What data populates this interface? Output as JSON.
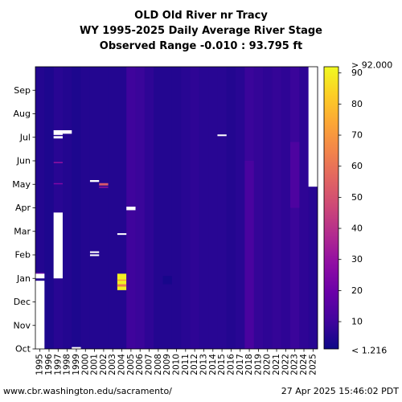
{
  "chart_data": {
    "type": "heatmap",
    "title": [
      "OLD Old River nr Tracy",
      "WY 1995-2025 Daily Average River Stage",
      "Observed Range -0.010 : 93.795 ft"
    ],
    "units": "ft",
    "x_tick_labels": [
      "1995",
      "1996",
      "1997",
      "1998",
      "1999",
      "2000",
      "2001",
      "2002",
      "2003",
      "2004",
      "2005",
      "2006",
      "2007",
      "2008",
      "2009",
      "2010",
      "2011",
      "2012",
      "2013",
      "2014",
      "2015",
      "2016",
      "2017",
      "2018",
      "2019",
      "2020",
      "2021",
      "2022",
      "2023",
      "2024",
      "2025"
    ],
    "y_tick_labels": [
      "Oct",
      "Nov",
      "Dec",
      "Jan",
      "Feb",
      "Mar",
      "Apr",
      "May",
      "Jun",
      "Jul",
      "Aug",
      "Sep"
    ],
    "colorbar": {
      "range": [
        1.216,
        92.0
      ],
      "ticks": [
        10,
        20,
        30,
        40,
        50,
        60,
        70,
        80,
        90
      ],
      "top_label": "> 92.000",
      "bottom_label": "< 1.216",
      "colormap": "plasma"
    },
    "background_value": 7,
    "column_values": [
      5,
      4,
      6,
      5,
      4,
      5,
      5,
      5,
      5,
      5,
      5,
      6,
      7,
      5,
      5,
      5,
      6,
      7,
      6,
      6,
      6,
      5,
      6,
      9,
      8,
      7,
      8,
      7,
      9,
      7,
      6
    ],
    "missing_blocks": [
      {
        "year": "1995",
        "start_month_index": 3.0,
        "end_month_index": 3.2
      },
      {
        "year": "1995",
        "start_month_index": 0.0,
        "end_month_index": 2.9
      },
      {
        "year": "1997",
        "start_month_index": 3.0,
        "end_month_index": 5.8
      },
      {
        "year": "1997",
        "start_month_index": 8.95,
        "end_month_index": 9.05
      },
      {
        "year": "1997",
        "start_month_index": 9.1,
        "end_month_index": 9.3
      },
      {
        "year": "1998",
        "start_month_index": 9.15,
        "end_month_index": 9.3
      },
      {
        "year": "1999",
        "start_month_index": 0.0,
        "end_month_index": 0.08
      },
      {
        "year": "2001",
        "start_month_index": 7.1,
        "end_month_index": 7.18
      },
      {
        "year": "2001",
        "start_month_index": 3.95,
        "end_month_index": 4.02
      },
      {
        "year": "2001",
        "start_month_index": 4.08,
        "end_month_index": 4.15
      },
      {
        "year": "2004",
        "start_month_index": 4.85,
        "end_month_index": 4.92
      },
      {
        "year": "2005",
        "start_month_index": 5.9,
        "end_month_index": 6.05
      },
      {
        "year": "2015",
        "start_month_index": 9.05,
        "end_month_index": 9.12
      },
      {
        "year": "2025",
        "start_month_index": 6.9,
        "end_month_index": 12.0
      }
    ],
    "highlight_blocks": [
      {
        "year": "2002",
        "start_month_index": 6.95,
        "end_month_index": 7.05,
        "value": 52
      },
      {
        "year": "2002",
        "start_month_index": 6.85,
        "end_month_index": 6.9,
        "value": 30
      },
      {
        "year": "1997",
        "start_month_index": 7.9,
        "end_month_index": 7.95,
        "value": 30
      },
      {
        "year": "1997",
        "start_month_index": 7.0,
        "end_month_index": 7.05,
        "value": 25
      },
      {
        "year": "2004",
        "start_month_index": 2.5,
        "end_month_index": 3.2,
        "value": 90
      },
      {
        "year": "2004",
        "start_month_index": 2.65,
        "end_month_index": 2.75,
        "value": 62
      },
      {
        "year": "2004",
        "start_month_index": 2.9,
        "end_month_index": 2.95,
        "value": 70
      },
      {
        "year": "1995",
        "start_month_index": 3.15,
        "end_month_index": 3.25,
        "value": 16
      },
      {
        "year": "2009",
        "start_month_index": 2.75,
        "end_month_index": 3.1,
        "value": 3
      },
      {
        "year": "1996",
        "start_month_index": 0.0,
        "end_month_index": 12.0,
        "value": 4
      },
      {
        "year": "2005",
        "start_month_index": 0.0,
        "end_month_index": 12.0,
        "value": 10
      },
      {
        "year": "2006",
        "start_month_index": 0.0,
        "end_month_index": 12.0,
        "value": 9
      },
      {
        "year": "2018",
        "start_month_index": 0.0,
        "end_month_index": 8.0,
        "value": 12
      },
      {
        "year": "2023",
        "start_month_index": 6.0,
        "end_month_index": 8.8,
        "value": 13
      }
    ],
    "grid": false,
    "legend": "colorbar-right"
  },
  "footer": {
    "left": "www.cbr.washington.edu/sacramento/",
    "right": "27 Apr 2025 15:46:02 PDT"
  }
}
